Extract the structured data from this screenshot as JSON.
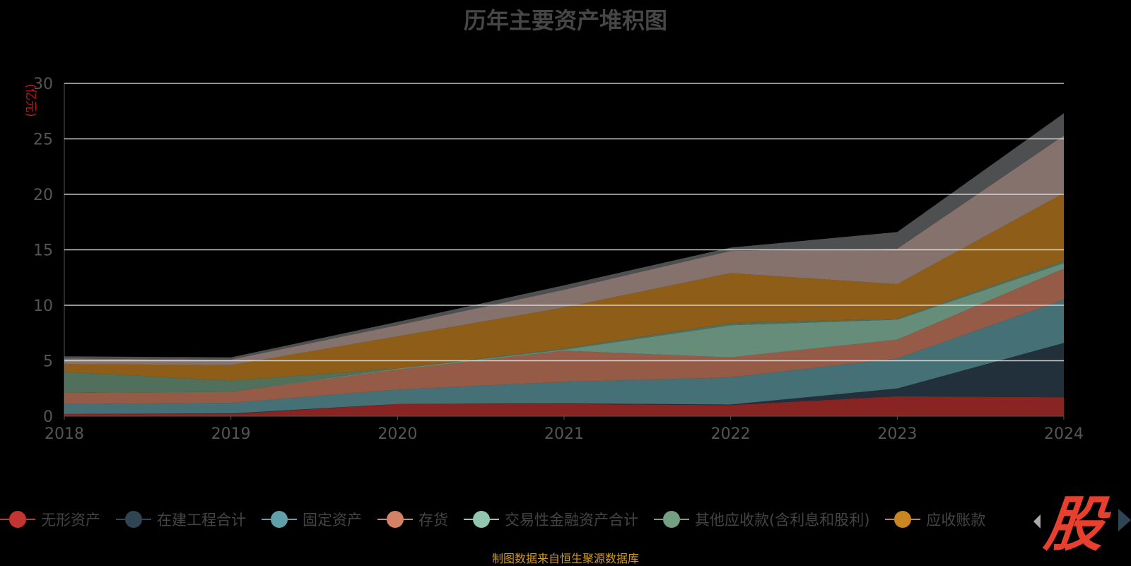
{
  "title": "历年主要资产堆积图",
  "source": "制图数据来自恒生聚源数据库",
  "logo_text": "股",
  "chart_data": {
    "type": "area",
    "stacked": true,
    "title": "历年主要资产堆积图",
    "ylabel": "(亿元)",
    "xlabel": "",
    "x": [
      "2018",
      "2019",
      "2020",
      "2021",
      "2022",
      "2023",
      "2024"
    ],
    "ylim": [
      0,
      30
    ],
    "yticks": [
      "0",
      "5",
      "10",
      "15",
      "20",
      "25",
      "30"
    ],
    "grid": true,
    "legend_position": "bottom",
    "series": [
      {
        "name": "无形资产",
        "color": "#c23531",
        "values": [
          0.2,
          0.2,
          1.1,
          1.1,
          1.0,
          1.8,
          1.7
        ]
      },
      {
        "name": "在建工程合计",
        "color": "#2f4554",
        "values": [
          0.0,
          0.05,
          0.0,
          0.05,
          0.05,
          0.7,
          4.9
        ]
      },
      {
        "name": "固定资产",
        "color": "#61a0a8",
        "values": [
          0.9,
          0.95,
          1.3,
          1.95,
          2.45,
          2.7,
          3.9
        ]
      },
      {
        "name": "存货",
        "color": "#d48265",
        "values": [
          1.0,
          1.0,
          1.8,
          2.8,
          1.8,
          1.7,
          2.8
        ]
      },
      {
        "name": "交易性金融资产合计",
        "color": "#91c7ae",
        "values": [
          0.0,
          0.0,
          0.1,
          0.1,
          2.9,
          1.8,
          0.5
        ]
      },
      {
        "name": "其他应收款(含利息和股利)",
        "color": "#749f83",
        "values": [
          1.9,
          1.0,
          0.0,
          0.1,
          0.2,
          0.1,
          0.2
        ]
      },
      {
        "name": "应收账款",
        "color": "#ca8622",
        "values": [
          0.7,
          1.4,
          2.9,
          3.7,
          4.5,
          3.1,
          6.1
        ]
      },
      {
        "name": "",
        "color": "#bda29a",
        "values": [
          0.5,
          0.5,
          1.0,
          1.6,
          2.0,
          3.2,
          5.2
        ]
      },
      {
        "name": "",
        "color": "#6e7074",
        "values": [
          0.2,
          0.2,
          0.3,
          0.4,
          0.3,
          1.5,
          2.0
        ]
      }
    ]
  },
  "legend": [
    {
      "label": "无形资产",
      "color": "#c23531"
    },
    {
      "label": "在建工程合计",
      "color": "#2f4554"
    },
    {
      "label": "固定资产",
      "color": "#61a0a8"
    },
    {
      "label": "存货",
      "color": "#d48265"
    },
    {
      "label": "交易性金融资产合计",
      "color": "#91c7ae"
    },
    {
      "label": "其他应收款(含利息和股利)",
      "color": "#749f83"
    },
    {
      "label": "应收账款",
      "color": "#ca8622"
    }
  ]
}
